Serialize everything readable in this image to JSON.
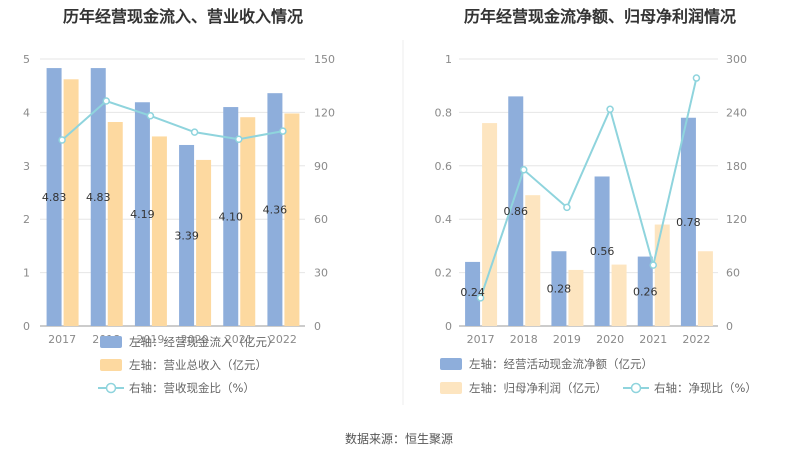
{
  "source": "数据来源：恒生聚源",
  "chart_data": [
    {
      "type": "bar",
      "title": "历年经营现金流入、营业收入情况",
      "categories": [
        "2017",
        "2018",
        "2019",
        "2020",
        "2021",
        "2022"
      ],
      "left_axis": {
        "ylim": [
          0,
          5
        ],
        "ticks": [
          "0",
          "1",
          "2",
          "3",
          "4",
          "5"
        ]
      },
      "right_axis": {
        "ylim": [
          0,
          150
        ],
        "ticks": [
          "0",
          "30",
          "60",
          "90",
          "120",
          "150"
        ]
      },
      "series": [
        {
          "name": "左轴：经营现金流入（亿元）",
          "kind": "bar",
          "axis": "left",
          "color": "#8eaedb",
          "values": [
            4.83,
            4.83,
            4.19,
            3.39,
            4.1,
            4.36
          ],
          "labels": [
            "4.83",
            "4.83",
            "4.19",
            "3.39",
            "4.10",
            "4.36"
          ]
        },
        {
          "name": "左轴：营业总收入（亿元）",
          "kind": "bar",
          "axis": "left",
          "color": "#fdd9a0",
          "values": [
            4.62,
            3.82,
            3.55,
            3.11,
            3.91,
            3.98
          ]
        },
        {
          "name": "右轴：营收现金比（%）",
          "kind": "line",
          "axis": "right",
          "color": "#8fd4dd",
          "values": [
            104.5,
            126.4,
            118.1,
            108.9,
            104.9,
            109.5
          ]
        }
      ]
    },
    {
      "type": "bar",
      "title": "历年经营现金流净额、归母净利润情况",
      "categories": [
        "2017",
        "2018",
        "2019",
        "2020",
        "2021",
        "2022"
      ],
      "left_axis": {
        "ylim": [
          0,
          1
        ],
        "ticks": [
          "0",
          "0.2",
          "0.4",
          "0.6",
          "0.8",
          "1"
        ]
      },
      "right_axis": {
        "ylim": [
          0,
          300
        ],
        "ticks": [
          "0",
          "60",
          "120",
          "180",
          "240",
          "300"
        ]
      },
      "series": [
        {
          "name": "左轴：经营活动现金流净额（亿元）",
          "kind": "bar",
          "axis": "left",
          "color": "#8eaedb",
          "values": [
            0.24,
            0.86,
            0.28,
            0.56,
            0.26,
            0.78
          ],
          "labels": [
            "0.24",
            "0.86",
            "0.28",
            "0.56",
            "0.26",
            "0.78"
          ]
        },
        {
          "name": "左轴：归母净利润（亿元）",
          "kind": "bar",
          "axis": "left",
          "color": "#fde5c0",
          "values": [
            0.76,
            0.49,
            0.21,
            0.23,
            0.38,
            0.28
          ]
        },
        {
          "name": "右轴：净现比（%）",
          "kind": "line",
          "axis": "right",
          "color": "#8fd4dd",
          "values": [
            31.6,
            175.5,
            133.3,
            243.5,
            68.4,
            278.6
          ]
        }
      ]
    }
  ]
}
